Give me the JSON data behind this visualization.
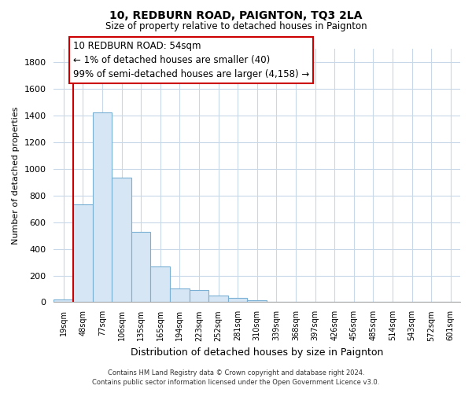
{
  "title": "10, REDBURN ROAD, PAIGNTON, TQ3 2LA",
  "subtitle": "Size of property relative to detached houses in Paignton",
  "xlabel": "Distribution of detached houses by size in Paignton",
  "ylabel": "Number of detached properties",
  "bar_labels": [
    "19sqm",
    "48sqm",
    "77sqm",
    "106sqm",
    "135sqm",
    "165sqm",
    "194sqm",
    "223sqm",
    "252sqm",
    "281sqm",
    "310sqm",
    "339sqm",
    "368sqm",
    "397sqm",
    "426sqm",
    "456sqm",
    "485sqm",
    "514sqm",
    "543sqm",
    "572sqm",
    "601sqm"
  ],
  "bar_values": [
    20,
    735,
    1425,
    935,
    530,
    270,
    100,
    90,
    50,
    30,
    15,
    0,
    0,
    0,
    0,
    0,
    0,
    0,
    0,
    0,
    0
  ],
  "bar_fill_color": "#d6e6f5",
  "bar_edge_color": "#7ab0d4",
  "highlight_color": "#cc0000",
  "ylim": [
    0,
    1900
  ],
  "yticks": [
    0,
    200,
    400,
    600,
    800,
    1000,
    1200,
    1400,
    1600,
    1800
  ],
  "annotation_title": "10 REDBURN ROAD: 54sqm",
  "annotation_line1": "← 1% of detached houses are smaller (40)",
  "annotation_line2": "99% of semi-detached houses are larger (4,158) →",
  "footer_line1": "Contains HM Land Registry data © Crown copyright and database right 2024.",
  "footer_line2": "Contains public sector information licensed under the Open Government Licence v3.0.",
  "bg_color": "#ffffff",
  "grid_color": "#c8d8e8"
}
